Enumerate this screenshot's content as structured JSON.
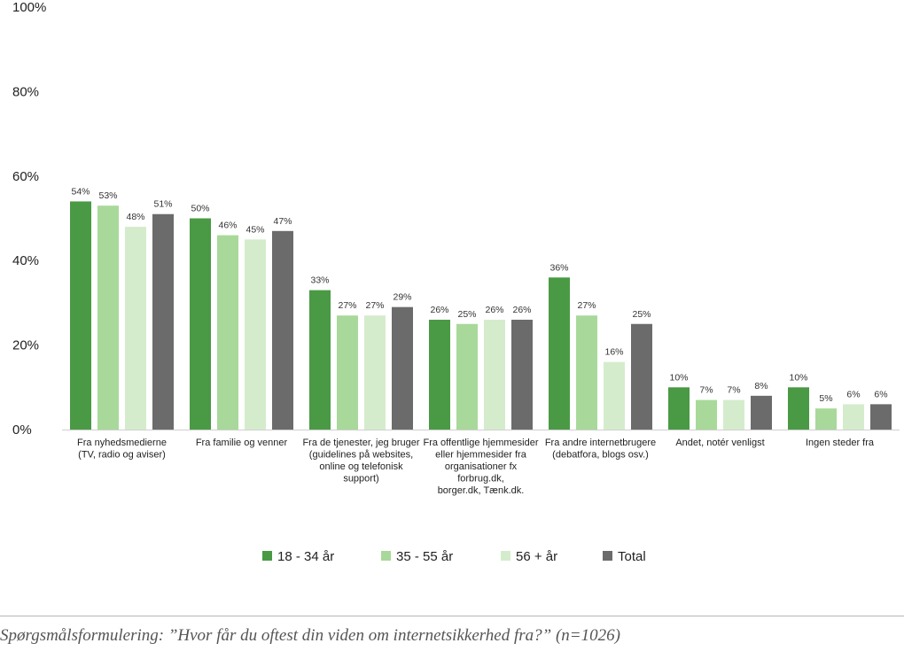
{
  "chart_data": {
    "type": "bar",
    "title": "",
    "xlabel": "",
    "ylabel": "",
    "ylim": [
      0,
      100
    ],
    "yticks": [
      0,
      20,
      40,
      60,
      80,
      100
    ],
    "ytick_suffix": "%",
    "grid": false,
    "legend_position": "bottom",
    "categories": [
      [
        "Fra nyhedsmedierne",
        "(TV, radio og aviser)"
      ],
      [
        "Fra familie og venner"
      ],
      [
        "Fra de tjenester, jeg bruger",
        "(guidelines på websites,",
        "online og telefonisk",
        "support)"
      ],
      [
        "Fra offentlige hjemmesider",
        "eller hjemmesider fra",
        "organisationer fx",
        "forbrug.dk,",
        "borger.dk, Tænk.dk."
      ],
      [
        "Fra andre internetbrugere",
        "(debatfora, blogs osv.)"
      ],
      [
        "Andet, notér venligst"
      ],
      [
        "Ingen steder fra"
      ]
    ],
    "series": [
      {
        "name": "18 - 34 år",
        "color": "#4a9a45",
        "values": [
          54,
          50,
          33,
          26,
          36,
          10,
          10
        ]
      },
      {
        "name": "35 - 55 år",
        "color": "#a8d99a",
        "values": [
          53,
          46,
          27,
          25,
          27,
          7,
          5
        ]
      },
      {
        "name": "56 + år",
        "color": "#d5eccc",
        "values": [
          48,
          45,
          27,
          26,
          16,
          7,
          6
        ]
      },
      {
        "name": "Total",
        "color": "#6b6b6b",
        "values": [
          51,
          47,
          29,
          26,
          25,
          8,
          6
        ]
      }
    ]
  },
  "caption": "Spørgsmålsformulering: ”Hvor får du oftest din viden om internetsikkerhed fra?” (n=1026)"
}
